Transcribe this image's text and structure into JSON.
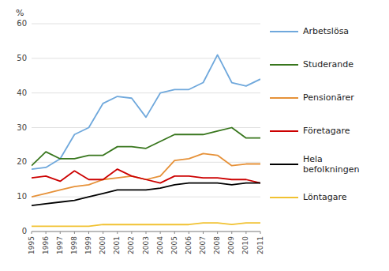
{
  "chart_data": {
    "type": "line",
    "y_label": "%",
    "x": [
      1995,
      1996,
      1997,
      1998,
      1999,
      2000,
      2001,
      2002,
      2003,
      2004,
      2005,
      2006,
      2007,
      2008,
      2009,
      2010,
      2011
    ],
    "series": [
      {
        "name": "Arbetslösa",
        "color": "#6fa8dc",
        "values": [
          18,
          18.5,
          21,
          28,
          30,
          37,
          39,
          38.5,
          33,
          40,
          41,
          41,
          43,
          51,
          43,
          42,
          44
        ]
      },
      {
        "name": "Studerande",
        "color": "#38761d",
        "values": [
          19,
          23,
          21,
          21,
          22,
          22,
          24.5,
          24.5,
          24,
          26,
          28,
          28,
          28,
          29,
          30,
          27,
          27
        ]
      },
      {
        "name": "Pensionärer",
        "color": "#e69138",
        "values": [
          10,
          11,
          12,
          13,
          13.5,
          15,
          15.5,
          16,
          15,
          16,
          20.5,
          21,
          22.5,
          22,
          19,
          19.5,
          19.5
        ]
      },
      {
        "name": "Företagare",
        "color": "#cc0000",
        "values": [
          15.5,
          16,
          14.5,
          17.5,
          15,
          15,
          18,
          16,
          15,
          14,
          16,
          16,
          15.5,
          15.5,
          15,
          15,
          14
        ]
      },
      {
        "name": "Hela\nbefolkningen",
        "color": "#000000",
        "values": [
          7.5,
          8,
          8.5,
          9,
          10,
          11,
          12,
          12,
          12,
          12.5,
          13.5,
          14,
          14,
          14,
          13.5,
          14,
          14
        ]
      },
      {
        "name": "Löntagare",
        "color": "#f1c232",
        "values": [
          1.5,
          1.5,
          1.5,
          1.5,
          1.5,
          2,
          2,
          2,
          2,
          2,
          2,
          2,
          2.5,
          2.5,
          2,
          2.5,
          2.5
        ]
      }
    ],
    "xlim": [
      1995,
      2011
    ],
    "xticks": [
      1995,
      1996,
      1997,
      1998,
      1999,
      2000,
      2001,
      2002,
      2003,
      2004,
      2005,
      2006,
      2007,
      2008,
      2009,
      2010,
      2011
    ],
    "ylim": [
      0,
      60
    ],
    "yticks": [
      0,
      10,
      20,
      30,
      40,
      50,
      60
    ],
    "grid": true,
    "legend": "right"
  }
}
